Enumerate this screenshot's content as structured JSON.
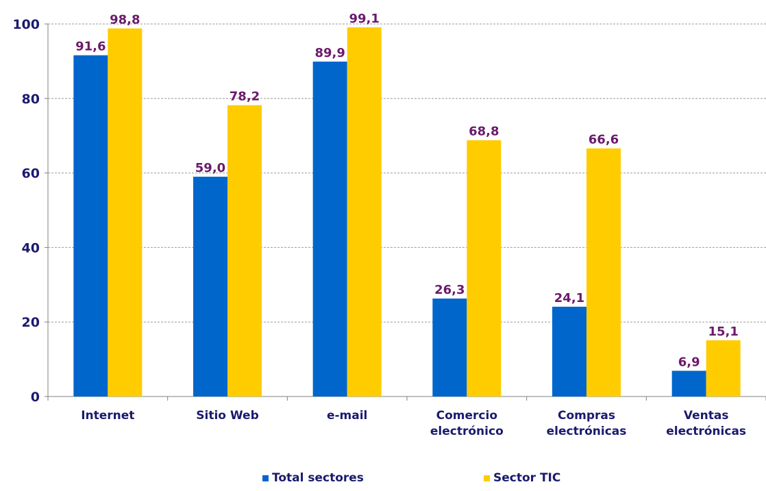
{
  "chart_data": {
    "type": "bar",
    "categories": [
      [
        "Internet"
      ],
      [
        "Sitio Web"
      ],
      [
        "e-mail"
      ],
      [
        "Comercio",
        "electrónico"
      ],
      [
        "Compras",
        "electrónicas"
      ],
      [
        "Ventas",
        "electrónicas"
      ]
    ],
    "series": [
      {
        "name": "Total sectores",
        "color": "#0066cc",
        "values": [
          91.6,
          59.0,
          89.9,
          26.3,
          24.1,
          6.9
        ],
        "labels": [
          "91,6",
          "59,0",
          "89,9",
          "26,3",
          "24,1",
          "6,9"
        ]
      },
      {
        "name": "Sector TIC",
        "color": "#ffcc00",
        "values": [
          98.8,
          78.2,
          99.1,
          68.8,
          66.6,
          15.1
        ],
        "labels": [
          "98,8",
          "78,2",
          "99,1",
          "68,8",
          "66,6",
          "15,1"
        ]
      }
    ],
    "y_ticks": [
      "0",
      "20",
      "40",
      "60",
      "80",
      "100"
    ],
    "ylim": [
      0,
      100
    ],
    "grid": true,
    "legend_position": "bottom",
    "colors": {
      "axis_text": "#1a1a6e",
      "data_label": "#6b1a6b",
      "grid": "#9a9a9a",
      "axis": "#808080"
    }
  }
}
